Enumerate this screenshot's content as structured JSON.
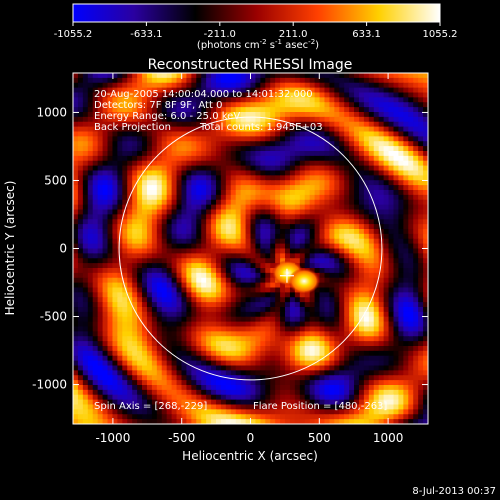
{
  "chart_data": {
    "type": "heatmap",
    "title": "Reconstructed RHESSI Image",
    "xlabel": "Heliocentric X (arcsec)",
    "ylabel": "Heliocentric Y (arcsec)",
    "xlim": [
      -1290,
      1290
    ],
    "ylim": [
      -1290,
      1290
    ],
    "x_ticks": [
      -1000,
      -500,
      0,
      500,
      1000
    ],
    "y_ticks": [
      -1000,
      -500,
      0,
      500,
      1000
    ],
    "colorbar": {
      "ticks": [
        "-1055.2",
        "-633.1",
        "-211.0",
        "211.0",
        "633.1",
        "1055.2"
      ],
      "range": [
        -1055.2,
        1055.2
      ],
      "unit_prefix": "(photons cm",
      "unit_exp1": "-2",
      "unit_mid": " s",
      "unit_exp2": "-1",
      "unit_mid2": " asec",
      "unit_exp3": "-2",
      "unit_suffix": ")",
      "colors": [
        "#0000ff",
        "#2a00a0",
        "#000000",
        "#9a0000",
        "#ff4000",
        "#ffd000",
        "#ffffff"
      ]
    },
    "annotations": [
      "20-Aug-2005 14:00:04.000 to 14:01:32.000",
      "Detectors: 7F 8F 9F, Att 0",
      "Energy Range: 6.0 - 25.0 keV",
      "Back Projection",
      "Total counts: 1.945E+03"
    ],
    "solar_limb_radius_arcsec": 955,
    "flare_marker": [
      265,
      -20
    ],
    "peak_sources": [
      {
        "x": 270,
        "y": -180,
        "level": 1.0
      },
      {
        "x": 390,
        "y": -240,
        "level": 1.0
      }
    ],
    "spin_axis": "Spin Axis = [268,-229]",
    "flare_position": "Flare Position = [480,-263]"
  },
  "footer": {
    "timestamp": "8-Jul-2013 00:37"
  }
}
